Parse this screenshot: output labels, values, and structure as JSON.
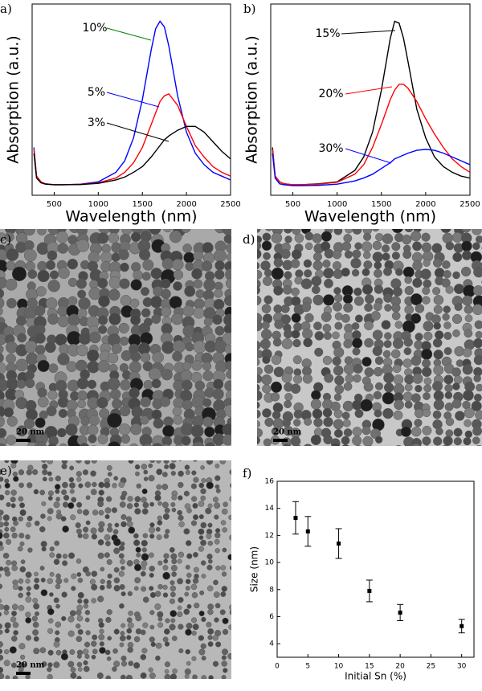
{
  "chart_data": [
    {
      "type": "line",
      "label": "a)",
      "xlabel": "Wavelength (nm)",
      "ylabel": "Absorption (a.u.)",
      "xlim": [
        250,
        2500
      ],
      "xticks": [
        500,
        1000,
        1500,
        2000,
        2500
      ],
      "ylim": [
        0,
        1
      ],
      "x": [
        270,
        300,
        350,
        400,
        500,
        600,
        800,
        1000,
        1200,
        1300,
        1400,
        1500,
        1600,
        1650,
        1700,
        1750,
        1800,
        1900,
        2000,
        2100,
        2200,
        2300,
        2400,
        2500
      ],
      "series": [
        {
          "name": "10%",
          "color": "#0000ff",
          "leader_color": "#008000",
          "values": [
            0.25,
            0.1,
            0.07,
            0.06,
            0.055,
            0.055,
            0.058,
            0.07,
            0.12,
            0.18,
            0.3,
            0.5,
            0.76,
            0.87,
            0.91,
            0.88,
            0.78,
            0.52,
            0.33,
            0.22,
            0.16,
            0.12,
            0.1,
            0.08
          ]
        },
        {
          "name": "5%",
          "color": "#ff0000",
          "leader_color": "#0000ff",
          "values": [
            0.24,
            0.1,
            0.07,
            0.06,
            0.055,
            0.055,
            0.057,
            0.065,
            0.09,
            0.12,
            0.17,
            0.25,
            0.37,
            0.43,
            0.49,
            0.52,
            0.53,
            0.47,
            0.36,
            0.26,
            0.2,
            0.15,
            0.12,
            0.1
          ]
        },
        {
          "name": "3%",
          "color": "#000000",
          "leader_color": "#000000",
          "values": [
            0.22,
            0.09,
            0.065,
            0.058,
            0.055,
            0.055,
            0.056,
            0.062,
            0.08,
            0.095,
            0.12,
            0.15,
            0.2,
            0.23,
            0.26,
            0.29,
            0.31,
            0.34,
            0.36,
            0.36,
            0.33,
            0.28,
            0.23,
            0.19
          ]
        }
      ]
    },
    {
      "type": "line",
      "label": "b)",
      "xlabel": "Wavelength (nm)",
      "ylabel": "Absorption (a.u.)",
      "xlim": [
        250,
        2500
      ],
      "xticks": [
        500,
        1000,
        1500,
        2000,
        2500
      ],
      "ylim": [
        0,
        1
      ],
      "x": [
        270,
        300,
        350,
        400,
        500,
        600,
        800,
        1000,
        1200,
        1300,
        1400,
        1500,
        1600,
        1650,
        1700,
        1750,
        1800,
        1900,
        2000,
        2100,
        2200,
        2300,
        2400,
        2500
      ],
      "series": [
        {
          "name": "15%",
          "color": "#000000",
          "leader_color": "#000000",
          "values": [
            0.25,
            0.1,
            0.07,
            0.06,
            0.055,
            0.055,
            0.06,
            0.07,
            0.13,
            0.2,
            0.33,
            0.55,
            0.82,
            0.91,
            0.9,
            0.82,
            0.7,
            0.45,
            0.3,
            0.2,
            0.15,
            0.12,
            0.1,
            0.09
          ]
        },
        {
          "name": "20%",
          "color": "#ff0000",
          "leader_color": "#ff0000",
          "values": [
            0.24,
            0.1,
            0.07,
            0.06,
            0.055,
            0.055,
            0.058,
            0.068,
            0.11,
            0.16,
            0.25,
            0.37,
            0.5,
            0.55,
            0.58,
            0.58,
            0.56,
            0.49,
            0.4,
            0.32,
            0.25,
            0.19,
            0.15,
            0.12
          ]
        },
        {
          "name": "30%",
          "color": "#0000ff",
          "leader_color": "#0000ff",
          "values": [
            0.22,
            0.09,
            0.06,
            0.055,
            0.05,
            0.05,
            0.052,
            0.058,
            0.075,
            0.09,
            0.11,
            0.14,
            0.17,
            0.19,
            0.2,
            0.21,
            0.22,
            0.235,
            0.24,
            0.235,
            0.22,
            0.2,
            0.18,
            0.16
          ]
        }
      ]
    },
    {
      "type": "scatter",
      "label": "f)",
      "xlabel": "Initial Sn (%)",
      "ylabel": "Size (nm)",
      "xlim": [
        0,
        32
      ],
      "xticks": [
        0,
        5,
        10,
        15,
        20,
        25,
        30
      ],
      "ylim": [
        3,
        16
      ],
      "yticks": [
        4,
        6,
        8,
        10,
        12,
        14,
        16
      ],
      "color": "#000000",
      "x": [
        3,
        5,
        10,
        15,
        20,
        30
      ],
      "values": [
        13.3,
        12.3,
        11.4,
        7.9,
        6.3,
        5.3
      ],
      "errors": [
        1.2,
        1.1,
        1.1,
        0.8,
        0.6,
        0.5
      ]
    }
  ],
  "images": [
    {
      "label": "c)",
      "scale_bar": "20 nm"
    },
    {
      "label": "d)",
      "scale_bar": "20 nm"
    },
    {
      "label": "e)",
      "scale_bar": "20 nm"
    }
  ]
}
